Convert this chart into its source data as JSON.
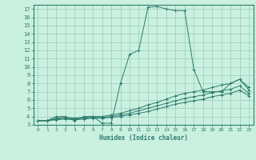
{
  "xlabel": "Humidex (Indice chaleur)",
  "bg_color": "#caf0e0",
  "line_color": "#2e7d6e",
  "grid_color": "#99ccbb",
  "xlim": [
    -0.5,
    23.5
  ],
  "ylim": [
    3,
    17.5
  ],
  "xticks": [
    0,
    1,
    2,
    3,
    4,
    5,
    6,
    7,
    8,
    9,
    10,
    11,
    12,
    13,
    14,
    15,
    16,
    17,
    18,
    19,
    20,
    21,
    22,
    23
  ],
  "yticks": [
    3,
    4,
    5,
    6,
    7,
    8,
    9,
    10,
    11,
    12,
    13,
    14,
    15,
    16,
    17
  ],
  "series": [
    {
      "x": [
        0,
        1,
        2,
        3,
        4,
        5,
        6,
        7,
        8,
        9,
        10,
        11,
        12,
        13,
        14,
        15,
        16,
        17,
        18,
        19,
        20,
        21,
        22,
        23
      ],
      "y": [
        3.5,
        3.5,
        4.0,
        4.0,
        3.5,
        4.0,
        4.0,
        3.2,
        3.2,
        8.0,
        11.5,
        12.0,
        17.2,
        17.3,
        17.0,
        16.8,
        16.8,
        9.7,
        7.0,
        7.0,
        7.0,
        8.0,
        8.5,
        7.5
      ]
    },
    {
      "x": [
        0,
        1,
        2,
        3,
        4,
        5,
        6,
        7,
        8,
        9,
        10,
        11,
        12,
        13,
        14,
        15,
        16,
        17,
        18,
        19,
        20,
        21,
        22,
        23
      ],
      "y": [
        3.5,
        3.5,
        3.8,
        3.9,
        3.8,
        3.9,
        4.0,
        4.0,
        4.2,
        4.4,
        4.7,
        5.0,
        5.4,
        5.7,
        6.1,
        6.5,
        6.8,
        7.0,
        7.2,
        7.5,
        7.8,
        8.0,
        8.5,
        7.2
      ]
    },
    {
      "x": [
        0,
        1,
        2,
        3,
        4,
        5,
        6,
        7,
        8,
        9,
        10,
        11,
        12,
        13,
        14,
        15,
        16,
        17,
        18,
        19,
        20,
        21,
        22,
        23
      ],
      "y": [
        3.5,
        3.5,
        3.7,
        3.8,
        3.7,
        3.8,
        3.9,
        3.9,
        4.0,
        4.2,
        4.4,
        4.7,
        5.0,
        5.3,
        5.6,
        5.9,
        6.2,
        6.4,
        6.6,
        6.9,
        7.1,
        7.3,
        7.7,
        6.8
      ]
    },
    {
      "x": [
        0,
        1,
        2,
        3,
        4,
        5,
        6,
        7,
        8,
        9,
        10,
        11,
        12,
        13,
        14,
        15,
        16,
        17,
        18,
        19,
        20,
        21,
        22,
        23
      ],
      "y": [
        3.5,
        3.5,
        3.6,
        3.7,
        3.6,
        3.7,
        3.8,
        3.8,
        3.9,
        4.0,
        4.2,
        4.4,
        4.6,
        4.9,
        5.2,
        5.5,
        5.7,
        5.9,
        6.1,
        6.4,
        6.6,
        6.8,
        7.2,
        6.5
      ]
    }
  ]
}
